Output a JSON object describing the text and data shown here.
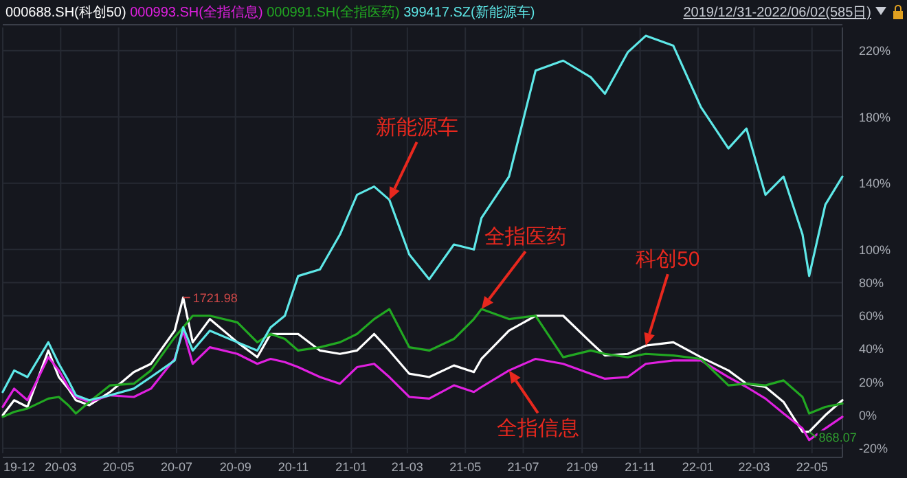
{
  "chart_data": {
    "type": "line",
    "subtitle": "2019/12/31-2022/06/02(585日)",
    "x": [
      "2019-12-31",
      "2020-01-12",
      "2020-01-26",
      "2020-02-17",
      "2020-02-28",
      "2020-03-09",
      "2020-03-17",
      "2020-03-31",
      "2020-04-22",
      "2020-05-17",
      "2020-06-04",
      "2020-06-29",
      "2020-07-08",
      "2020-07-18",
      "2020-08-05",
      "2020-09-03",
      "2020-09-24",
      "2020-10-08",
      "2020-10-23",
      "2020-11-06",
      "2020-11-29",
      "2020-12-20",
      "2021-01-07",
      "2021-01-25",
      "2021-02-10",
      "2021-03-03",
      "2021-03-24",
      "2021-04-19",
      "2021-05-10",
      "2021-05-18",
      "2021-06-16",
      "2021-07-14",
      "2021-08-12",
      "2021-09-10",
      "2021-09-25",
      "2021-10-19",
      "2021-11-07",
      "2021-12-06",
      "2022-01-04",
      "2022-02-02",
      "2022-02-21",
      "2022-03-13",
      "2022-04-01",
      "2022-04-21",
      "2022-04-28",
      "2022-05-15",
      "2022-06-02"
    ],
    "series": [
      {
        "name": "000688.SH(科创50)",
        "color": "#ffffff",
        "values": [
          0,
          9,
          5,
          39,
          23,
          16,
          9,
          6,
          14,
          26,
          31,
          51,
          71,
          44,
          58,
          44,
          35,
          49,
          49,
          49,
          39,
          37,
          39,
          49,
          39,
          25,
          23,
          30,
          26,
          34,
          51,
          60,
          60,
          44,
          36,
          37,
          42,
          44,
          35,
          27,
          19,
          17,
          8,
          -10,
          -10,
          0,
          9
        ]
      },
      {
        "name": "000993.SH(全指信息)",
        "color": "#e020e0",
        "values": [
          5,
          16,
          9,
          35,
          27,
          17,
          11,
          8,
          12,
          11,
          16,
          34,
          51,
          31,
          41,
          37,
          31,
          34,
          32,
          29,
          23,
          19,
          29,
          31,
          23,
          11,
          10,
          18,
          14,
          17,
          27,
          34,
          31,
          25,
          22,
          23,
          31,
          33,
          33,
          23,
          17,
          10,
          1,
          -8,
          -15,
          -8,
          -1
        ]
      },
      {
        "name": "000991.SH(全指医药)",
        "color": "#22a822",
        "values": [
          -1,
          2,
          4,
          10,
          11,
          6,
          1,
          8,
          18,
          19,
          27,
          47,
          53,
          60,
          60,
          56,
          44,
          49,
          46,
          39,
          41,
          44,
          49,
          58,
          64,
          41,
          39,
          46,
          58,
          64,
          58,
          60,
          35,
          39,
          37,
          35,
          37,
          36,
          34,
          18,
          19,
          18,
          21,
          11,
          1,
          5,
          7
        ]
      },
      {
        "name": "399417.SZ(新能源车)",
        "color": "#5ee8e8",
        "values": [
          14,
          27,
          23,
          44,
          31,
          21,
          12,
          9,
          12,
          16,
          23,
          33,
          53,
          39,
          51,
          44,
          39,
          53,
          60,
          84,
          88,
          109,
          133,
          138,
          130,
          97,
          82,
          103,
          100,
          119,
          144,
          208,
          214,
          204,
          194,
          219,
          229,
          223,
          186,
          161,
          173,
          133,
          144,
          109,
          84,
          127,
          144
        ]
      }
    ],
    "xlim": [
      "2019-12-31",
      "2022-06-02"
    ],
    "xticks": [
      {
        "value": "2019-12-31",
        "label": "19-12"
      },
      {
        "value": "2020-03-01",
        "label": "20-03"
      },
      {
        "value": "2020-05-01",
        "label": "20-05"
      },
      {
        "value": "2020-07-01",
        "label": "20-07"
      },
      {
        "value": "2020-09-01",
        "label": "20-09"
      },
      {
        "value": "2020-11-01",
        "label": "20-11"
      },
      {
        "value": "2021-01-01",
        "label": "21-01"
      },
      {
        "value": "2021-03-01",
        "label": "21-03"
      },
      {
        "value": "2021-05-01",
        "label": "21-05"
      },
      {
        "value": "2021-07-01",
        "label": "21-07"
      },
      {
        "value": "2021-09-01",
        "label": "21-09"
      },
      {
        "value": "2021-11-01",
        "label": "21-11"
      },
      {
        "value": "2022-01-01",
        "label": "22-01"
      },
      {
        "value": "2022-03-01",
        "label": "22-03"
      },
      {
        "value": "2022-05-01",
        "label": "22-05"
      }
    ],
    "ylim": [
      -23,
      234
    ],
    "yticks": [
      {
        "value": -20,
        "label": "-20%"
      },
      {
        "value": 0,
        "label": "0%"
      },
      {
        "value": 20,
        "label": "20%"
      },
      {
        "value": 40,
        "label": "40%"
      },
      {
        "value": 60,
        "label": "60%"
      },
      {
        "value": 80,
        "label": "80%"
      },
      {
        "value": 100,
        "label": "100%"
      },
      {
        "value": 140,
        "label": "140%"
      },
      {
        "value": 180,
        "label": "180%"
      },
      {
        "value": 220,
        "label": "220%"
      }
    ],
    "grid": true,
    "legend": "top left",
    "line_style": "solid",
    "annotations": [
      {
        "text": "1721.98",
        "x": "2020-07-08",
        "y": 71
      },
      {
        "text": "868.07",
        "x": "2022-04-28",
        "y": -10
      },
      {
        "text": "新能源车",
        "x": "2021-02-10",
        "y": 130
      },
      {
        "text": "全指医药",
        "x": "2021-05-18",
        "y": 64
      },
      {
        "text": "科创50",
        "x": "2021-11-07",
        "y": 42
      },
      {
        "text": "全指信息",
        "x": "2021-06-16",
        "y": 27
      }
    ]
  }
}
